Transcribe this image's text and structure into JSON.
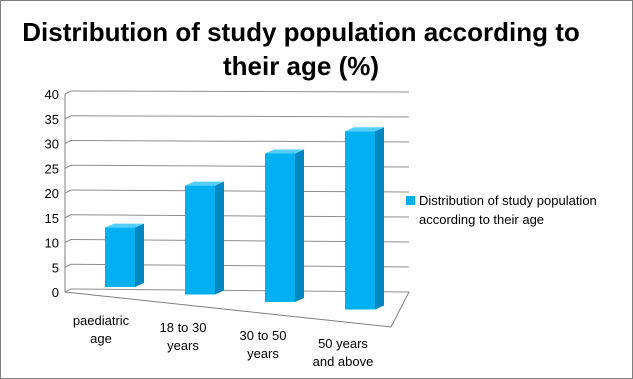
{
  "chart_data": {
    "type": "bar",
    "title": "Distribution of study population according to their age (%)",
    "categories": [
      "paediatric age",
      "18 to 30 years",
      "30 to 50 years",
      "50 years and above"
    ],
    "category_lines": [
      [
        "paediatric",
        "age"
      ],
      [
        "18 to 30",
        "years"
      ],
      [
        "30 to 50",
        "years"
      ],
      [
        "50 years",
        "and above"
      ]
    ],
    "series": [
      {
        "name": "Distribution of study population according to their age",
        "values": [
          12,
          22,
          30,
          36
        ]
      }
    ],
    "legend_lines": [
      "Distribution of study population",
      "according to their age"
    ],
    "ylim": [
      0,
      40
    ],
    "yticks": [
      0,
      5,
      10,
      15,
      20,
      25,
      30,
      35,
      40
    ],
    "grid": true,
    "legend_position": "right",
    "style": "3d-clustered-column",
    "colors": {
      "bar_front": "#00B0F0",
      "bar_side": "#0086C0",
      "bar_top": "#55CEFA",
      "grid": "#8c8c8c"
    }
  }
}
